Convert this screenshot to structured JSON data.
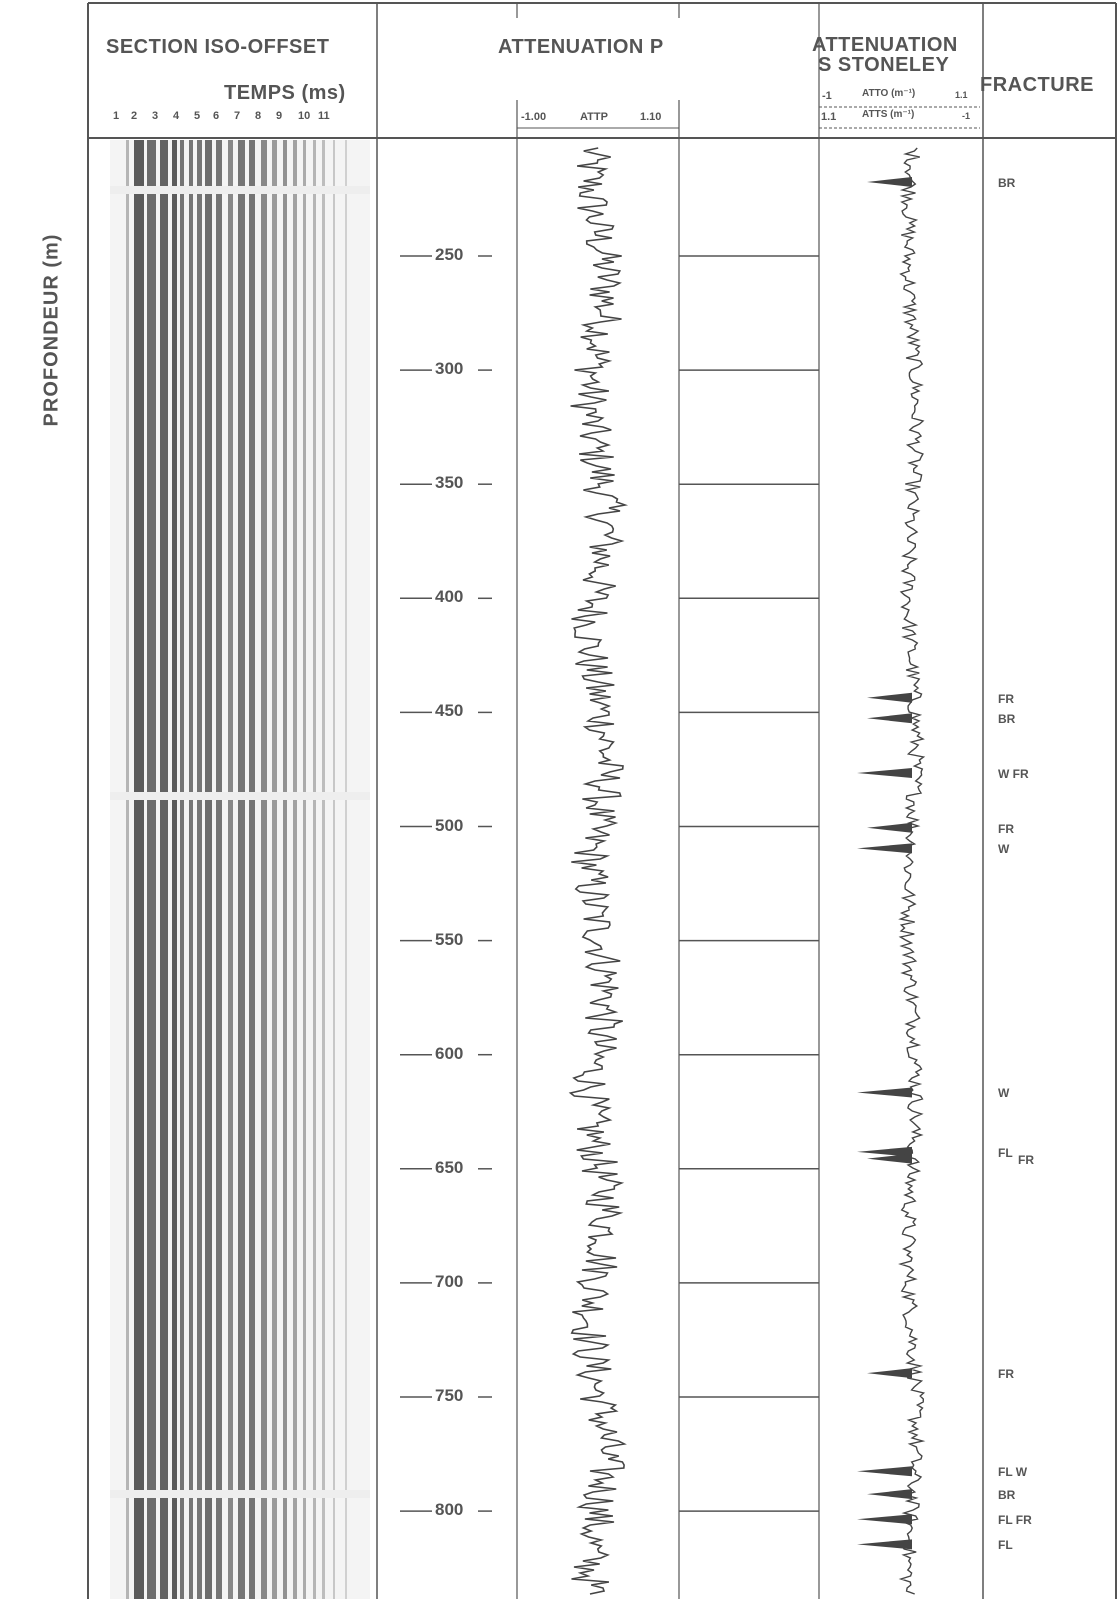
{
  "chart_data": {
    "type": "well-log",
    "tracks": [
      {
        "title": "SECTION ISO-OFFSET",
        "subtitle": "TEMPS (ms)",
        "ticks": [
          "1",
          "2",
          "3",
          "4",
          "5",
          "6",
          "7",
          "8",
          "9",
          "10",
          "11"
        ]
      },
      {
        "title": "ATTENUATION P",
        "scale_min": "-1.00",
        "scale_label": "ATTP",
        "scale_max": "1.10",
        "xlim": [
          -1.0,
          1.1
        ]
      },
      {
        "title_line1": "ATTENUATION",
        "title_line2": "S STONELEY",
        "scale1_min": "-1",
        "scale1_label": "ATTO (m⁻¹)",
        "scale1_max": "1.1",
        "scale2_min": "1.1",
        "scale2_label": "ATTS (m⁻¹)",
        "scale2_max": "-1"
      },
      {
        "title": "FRACTURE"
      }
    ],
    "ylabel": "PROFONDEUR (m)",
    "depth_ticks": [
      "250",
      "300",
      "350",
      "400",
      "450",
      "500",
      "550",
      "600",
      "650",
      "700",
      "750",
      "800"
    ],
    "ylim": [
      202,
      820
    ],
    "fractures": [
      {
        "depth": 218,
        "codes": "BR"
      },
      {
        "depth": 444,
        "codes": "FR"
      },
      {
        "depth": 453,
        "codes": "BR"
      },
      {
        "depth": 477,
        "codes": "W FR"
      },
      {
        "depth": 501,
        "codes": "FR"
      },
      {
        "depth": 510,
        "codes": "W"
      },
      {
        "depth": 617,
        "codes": "W"
      },
      {
        "depth": 643,
        "codes": "FL"
      },
      {
        "depth": 646,
        "codes": "FR"
      },
      {
        "depth": 740,
        "codes": "FR"
      },
      {
        "depth": 783,
        "codes": "FL W"
      },
      {
        "depth": 793,
        "codes": "BR"
      },
      {
        "depth": 804,
        "codes": "FL FR"
      },
      {
        "depth": 815,
        "codes": "FL"
      }
    ]
  }
}
